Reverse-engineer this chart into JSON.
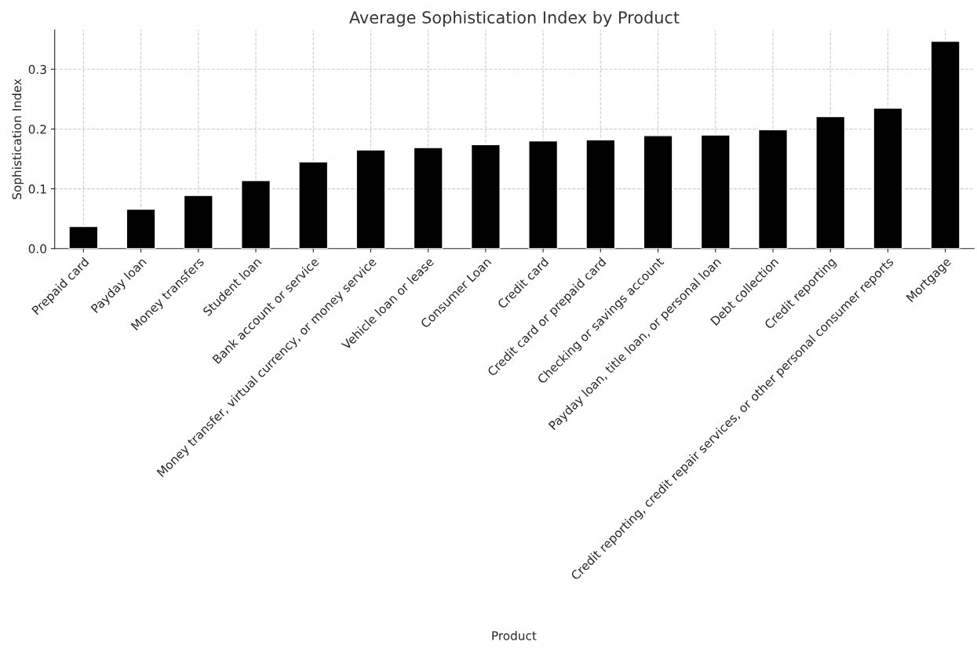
{
  "chart_data": {
    "type": "bar",
    "title": "Average Sophistication Index by Product",
    "xlabel": "Product",
    "ylabel": "Sophistication Index",
    "categories": [
      "Prepaid card",
      "Payday loan",
      "Money transfers",
      "Student loan",
      "Bank account or service",
      "Money transfer, virtual currency, or money service",
      "Vehicle loan or lease",
      "Consumer Loan",
      "Credit card",
      "Credit card or prepaid card",
      "Checking or savings account",
      "Payday loan, title loan, or personal loan",
      "Debt collection",
      "Credit reporting",
      "Credit reporting, credit repair services, or other personal consumer reports",
      "Mortgage"
    ],
    "values": [
      0.037,
      0.066,
      0.089,
      0.114,
      0.145,
      0.165,
      0.169,
      0.174,
      0.18,
      0.182,
      0.189,
      0.19,
      0.199,
      0.221,
      0.235,
      0.347
    ],
    "color": "#000000",
    "ylim": [
      0,
      0.366
    ],
    "yticks": [
      {
        "value": 0,
        "label": "0.0"
      },
      {
        "value": 0.1,
        "label": "0.1"
      },
      {
        "value": 0.2,
        "label": "0.2"
      },
      {
        "value": 0.3,
        "label": "0.3"
      }
    ],
    "grid": true
  }
}
